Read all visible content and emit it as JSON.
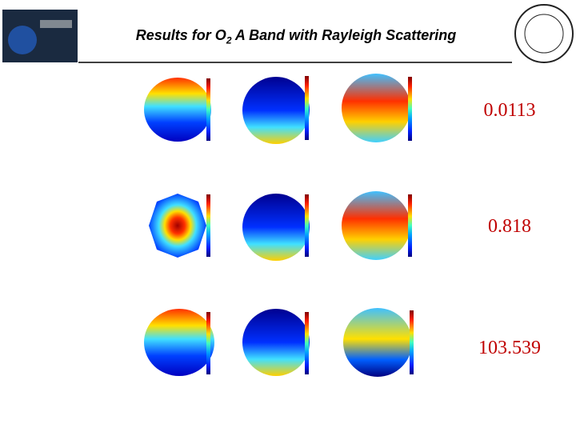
{
  "header": {
    "title": {
      "before": "Results for O",
      "subscript": "2",
      "after": " A Band with Rayleigh Scattering"
    }
  },
  "results": [
    {
      "value": "0.0113"
    },
    {
      "value": "0.818"
    },
    {
      "value": "103.539"
    }
  ]
}
